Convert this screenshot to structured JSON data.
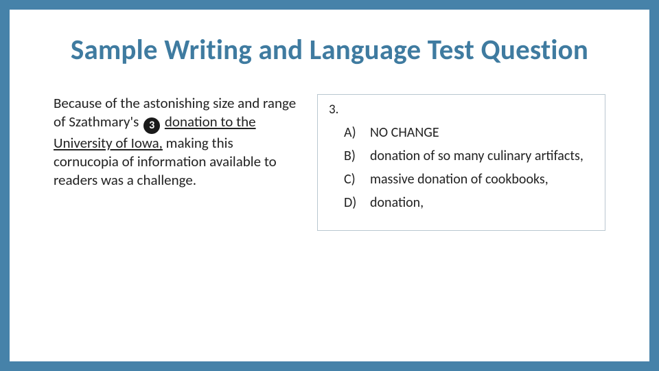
{
  "colors": {
    "frame": "#4682a9",
    "title": "#3f7ba0",
    "answer_border": "#b9c7d0",
    "text": "#222222",
    "bg": "#ffffff"
  },
  "title": "Sample Writing and Language Test Question",
  "passage": {
    "pre": "Because of the astonishing size and range of Szathmary's ",
    "badge": "3",
    "under_before": " ",
    "underlined": "donation to the University of Iowa,",
    "post": " making this cornucopia of information available to readers was a challenge."
  },
  "question": {
    "number": "3.",
    "choices": [
      {
        "label": "A)",
        "text": "NO CHANGE"
      },
      {
        "label": "B)",
        "text": "donation of so many culinary artifacts,"
      },
      {
        "label": "C)",
        "text": "massive donation of cookbooks,"
      },
      {
        "label": "D)",
        "text": "donation,"
      }
    ]
  }
}
